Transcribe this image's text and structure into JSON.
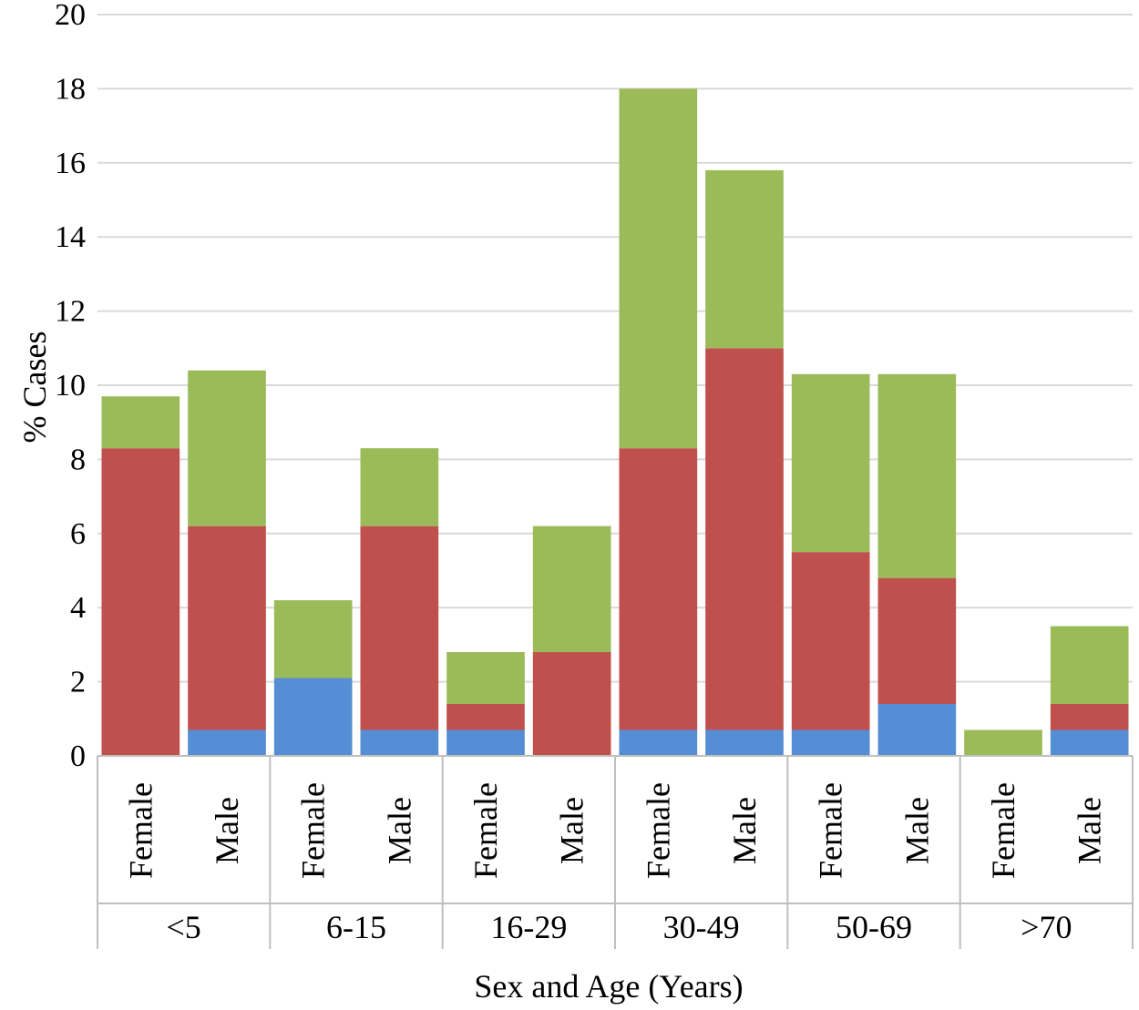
{
  "chart_data": {
    "type": "bar",
    "stacked": true,
    "title": "",
    "xlabel": "Sex and Age (Years)",
    "ylabel": "% Cases",
    "ylim": [
      0,
      20
    ],
    "yticks": [
      0,
      2,
      4,
      6,
      8,
      10,
      12,
      14,
      16,
      18,
      20
    ],
    "grid": true,
    "legend": "none",
    "groups": [
      "<5",
      "6-15",
      "16-29",
      "30-49",
      "50-69",
      ">70"
    ],
    "categories": [
      "Female",
      "Male",
      "Female",
      "Male",
      "Female",
      "Male",
      "Female",
      "Male",
      "Female",
      "Male",
      "Female",
      "Male"
    ],
    "series": [
      {
        "color": "#558ED5",
        "values": [
          0,
          0.7,
          2.1,
          0.7,
          0.7,
          0,
          0.7,
          0.7,
          0.7,
          1.4,
          0,
          0.7
        ]
      },
      {
        "color": "#C0504D",
        "values": [
          8.3,
          5.5,
          0,
          5.5,
          0.7,
          2.8,
          7.6,
          10.3,
          4.8,
          3.4,
          0,
          0.7
        ]
      },
      {
        "color": "#9BBB59",
        "values": [
          1.4,
          4.2,
          2.1,
          2.1,
          1.4,
          3.4,
          9.7,
          4.8,
          4.8,
          5.5,
          0.7,
          2.1
        ]
      }
    ]
  }
}
